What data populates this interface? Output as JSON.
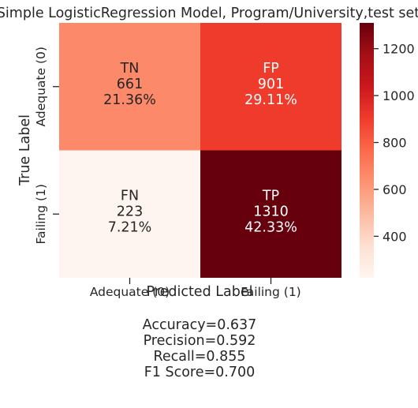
{
  "chart_data": {
    "type": "heatmap",
    "title": "Simple LogisticRegression Model, Program/University,test set",
    "xlabel": "Predicted Label",
    "ylabel": "True Label",
    "x_categories": [
      "Adequate (0)",
      "Failing (1)"
    ],
    "y_categories": [
      "Adequate (0)",
      "Failing (1)"
    ],
    "cells": [
      [
        {
          "label": "TN",
          "value": 661,
          "percent": "21.36%"
        },
        {
          "label": "FP",
          "value": 901,
          "percent": "29.11%"
        }
      ],
      [
        {
          "label": "FN",
          "value": 223,
          "percent": "7.21%"
        },
        {
          "label": "TP",
          "value": 1310,
          "percent": "42.33%"
        }
      ]
    ],
    "colorbar": {
      "colormap": "Reds",
      "vmin": 223,
      "vmax": 1310,
      "ticks": [
        400,
        600,
        800,
        1000,
        1200
      ]
    },
    "metrics": [
      "Accuracy=0.637",
      "Precision=0.592",
      "Recall=0.855",
      "F1 Score=0.700"
    ]
  }
}
